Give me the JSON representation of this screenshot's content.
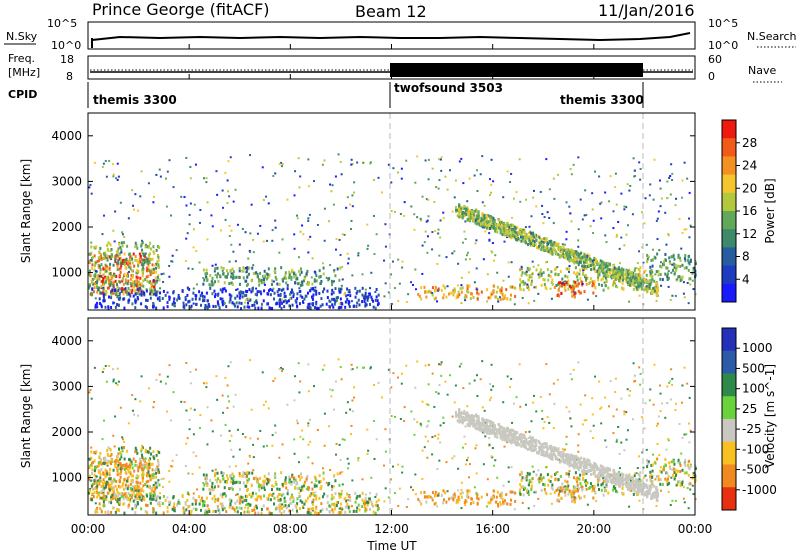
{
  "header": {
    "site": "Prince George (fitACF)",
    "beam": "Beam 12",
    "date": "11/Jan/2016"
  },
  "top_panels": {
    "nsky_label": "N.Sky",
    "nsky_ticks": [
      "10^5",
      "10^0"
    ],
    "nsearch_label": "N.Search",
    "nsearch_ticks": [
      "10^5",
      "10^0"
    ],
    "freq_label_1": "Freq.",
    "freq_label_2": "[MHz]",
    "freq_ticks": [
      "18",
      "8"
    ],
    "nave_label": "Nave",
    "nave_ticks": [
      "60",
      "0"
    ],
    "cpid_label": "CPID"
  },
  "cpid_modes": [
    {
      "label": "themis 3300",
      "start_hr": 0,
      "end_hr": 12
    },
    {
      "label": "twofsound 3503",
      "start_hr": 12,
      "end_hr": 22
    },
    {
      "label": "themis 3300",
      "start_hr": 22,
      "end_hr": 24
    }
  ],
  "x_axis": {
    "label": "Time UT",
    "ticks": [
      "00:00",
      "04:00",
      "08:00",
      "12:00",
      "16:00",
      "20:00",
      "00:00"
    ]
  },
  "power_colorbar": {
    "label": "Power [dB]",
    "ticks": [
      "28",
      "24",
      "20",
      "16",
      "12",
      "8",
      "4"
    ],
    "colors": [
      "#ee1a10",
      "#f25a18",
      "#f49122",
      "#f4c62e",
      "#b4c83e",
      "#62a85a",
      "#3c8a6a",
      "#275da0",
      "#1f3cc0",
      "#1a1aff"
    ]
  },
  "velocity_colorbar": {
    "label": "Velocity [m s^-1]",
    "ticks": [
      "1000",
      "500",
      "100",
      "25",
      "-25",
      "-100",
      "-500",
      "-1000"
    ],
    "colors": [
      "#2430b8",
      "#2a5aa8",
      "#2f8a4a",
      "#6ad23a",
      "#c8c8c0",
      "#f8c020",
      "#f08a20",
      "#e83010"
    ]
  },
  "chart_data": {
    "type": "heatmap",
    "panels": [
      "Power",
      "Velocity"
    ],
    "xlabel": "Time UT",
    "ylabel": "Slant Range [km]",
    "xlim_hours": [
      0,
      24
    ],
    "ylim_km": [
      180,
      4500
    ],
    "yticks_km": [
      "1000",
      "2000",
      "3000",
      "4000"
    ],
    "xticks": [
      "00:00",
      "04:00",
      "08:00",
      "12:00",
      "16:00",
      "20:00",
      "00:00"
    ],
    "mode_change_hours": [
      12,
      22
    ],
    "power_db_range": [
      0,
      30
    ],
    "velocity_range_ms": [
      -1000,
      1000
    ],
    "power_regions": [
      {
        "t0": 0.0,
        "t1": 2.6,
        "r0": 500,
        "r1": 1400,
        "value": 28
      },
      {
        "t0": 0.0,
        "t1": 2.8,
        "r0": 500,
        "r1": 1650,
        "value": 16
      },
      {
        "t0": 0.0,
        "t1": 11.5,
        "r0": 200,
        "r1": 650,
        "value": 6
      },
      {
        "t0": 4.5,
        "t1": 10.0,
        "r0": 700,
        "r1": 1100,
        "value": 14
      },
      {
        "t0": 13.0,
        "t1": 17.0,
        "r0": 400,
        "r1": 700,
        "value": 22
      },
      {
        "t0": 17.0,
        "t1": 22.0,
        "r0": 600,
        "r1": 1100,
        "value": 18
      },
      {
        "t0": 18.5,
        "t1": 20.0,
        "r0": 450,
        "r1": 800,
        "value": 28
      },
      {
        "t0": 22.0,
        "t1": 24.0,
        "r0": 800,
        "r1": 1400,
        "value": 14
      }
    ]
  }
}
